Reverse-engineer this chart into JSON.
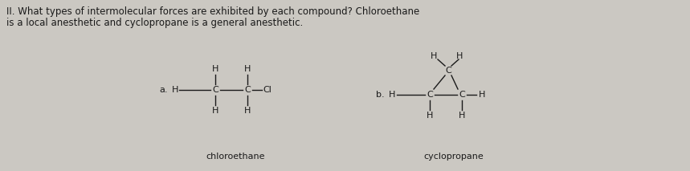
{
  "background_color": "#cbc8c2",
  "text_color": "#1a1a1a",
  "title_line1": "II. What types of intermolecular forces are exhibited by each compound? Chloroethane",
  "title_line2": "is a local anesthetic and cyclopropane is a general anesthetic.",
  "label_a": "a.",
  "label_b": "b.",
  "name_a": "chloroethane",
  "name_b": "cyclopropane",
  "font_size_title": 8.5,
  "font_size_struct": 8.0
}
